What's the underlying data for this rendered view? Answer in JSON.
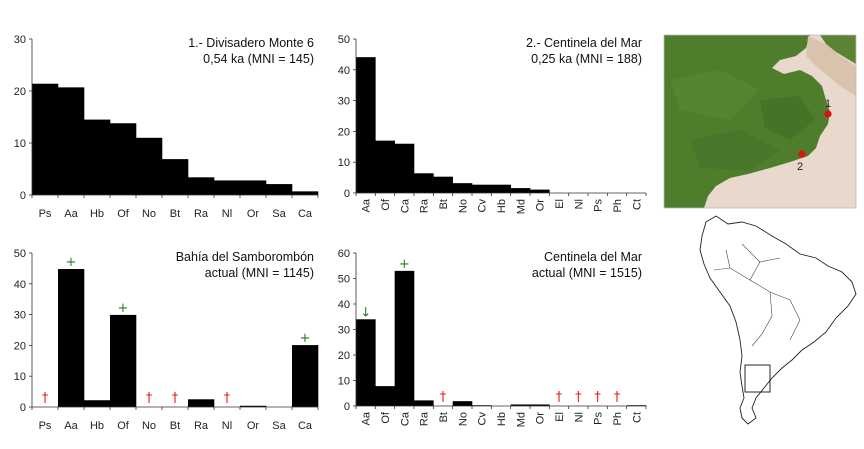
{
  "chart_data": [
    {
      "type": "bar",
      "title_line1": "1.- Divisadero Monte 6",
      "title_line2": "0,54 ka (MNI = 145)",
      "ylim": [
        0,
        30
      ],
      "yticks": [
        0,
        10,
        20,
        30
      ],
      "categories": [
        "Ps",
        "Aa",
        "Hb",
        "Of",
        "No",
        "Bt",
        "Ra",
        "Nl",
        "Or",
        "Sa",
        "Ca"
      ],
      "values": [
        21.4,
        20.7,
        14.5,
        13.8,
        11.0,
        6.9,
        3.4,
        2.8,
        2.8,
        2.1,
        0.7
      ],
      "rotate_labels": false,
      "markers": []
    },
    {
      "type": "bar",
      "title_line1": "2.- Centinela del Mar",
      "title_line2": "0,25 ka (MNI = 188)",
      "ylim": [
        0,
        50
      ],
      "yticks": [
        0,
        10,
        20,
        30,
        40,
        50
      ],
      "categories": [
        "Aa",
        "Of",
        "Ca",
        "Ra",
        "Bt",
        "No",
        "Cv",
        "Hb",
        "Md",
        "Or",
        "El",
        "Nl",
        "Ps",
        "Ph",
        "Ct"
      ],
      "values": [
        44.1,
        17.0,
        16.0,
        6.4,
        5.3,
        3.2,
        2.7,
        2.7,
        1.6,
        1.1,
        0,
        0,
        0,
        0,
        0
      ],
      "rotate_labels": true,
      "markers": []
    },
    {
      "type": "bar",
      "title_line1": "Bahía del Samborombón",
      "title_line2": "actual (MNI = 1145)",
      "ylim": [
        0,
        50
      ],
      "yticks": [
        0,
        10,
        20,
        30,
        40,
        50
      ],
      "categories": [
        "Ps",
        "Aa",
        "Hb",
        "Of",
        "No",
        "Bt",
        "Ra",
        "Nl",
        "Or",
        "Sa",
        "Ca"
      ],
      "values": [
        0,
        44.8,
        2.2,
        29.9,
        0,
        0,
        2.5,
        0,
        0.4,
        0,
        20.1
      ],
      "rotate_labels": false,
      "markers": [
        {
          "category": "Ps",
          "symbol": "†",
          "color": "#e02020"
        },
        {
          "category": "Aa",
          "symbol": "+",
          "color": "#2a7a2a"
        },
        {
          "category": "Of",
          "symbol": "+",
          "color": "#2a7a2a"
        },
        {
          "category": "No",
          "symbol": "†",
          "color": "#e02020"
        },
        {
          "category": "Bt",
          "symbol": "†",
          "color": "#e02020"
        },
        {
          "category": "Nl",
          "symbol": "†",
          "color": "#e02020"
        },
        {
          "category": "Ca",
          "symbol": "+",
          "color": "#2a7a2a"
        }
      ]
    },
    {
      "type": "bar",
      "title_line1": "Centinela del Mar",
      "title_line2": "actual (MNI = 1515)",
      "ylim": [
        0,
        60
      ],
      "yticks": [
        0,
        10,
        20,
        30,
        40,
        50,
        60
      ],
      "categories": [
        "Aa",
        "Of",
        "Ca",
        "Ra",
        "Bt",
        "No",
        "Cv",
        "Hb",
        "Md",
        "Or",
        "El",
        "Nl",
        "Ps",
        "Ph",
        "Ct"
      ],
      "values": [
        34.0,
        7.8,
        53.0,
        2.2,
        0,
        1.9,
        0.3,
        0,
        0.6,
        0.6,
        0,
        0,
        0,
        0,
        0.3
      ],
      "rotate_labels": true,
      "markers": [
        {
          "category": "Aa",
          "symbol": "↓",
          "color": "#2a7a2a"
        },
        {
          "category": "Ca",
          "symbol": "+",
          "color": "#2a7a2a"
        },
        {
          "category": "Bt",
          "symbol": "†",
          "color": "#e02020"
        },
        {
          "category": "El",
          "symbol": "†",
          "color": "#e02020"
        },
        {
          "category": "Nl",
          "symbol": "†",
          "color": "#e02020"
        },
        {
          "category": "Ps",
          "symbol": "†",
          "color": "#e02020"
        },
        {
          "category": "Ph",
          "symbol": "†",
          "color": "#e02020"
        }
      ]
    }
  ],
  "map": {
    "site_labels": [
      "1",
      "2"
    ],
    "site_color": "#e01010",
    "land_color": "#4e7d2c",
    "sea_color": "#e8d9cc"
  }
}
